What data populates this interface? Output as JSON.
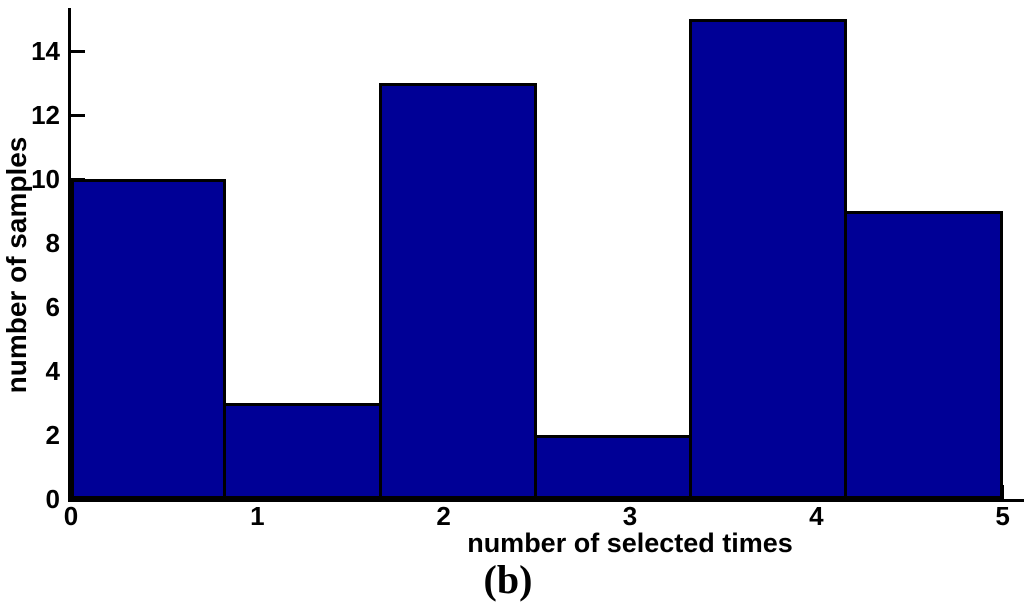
{
  "figure": {
    "caption": "(b)"
  },
  "chart_data": {
    "type": "bar",
    "subtype": "histogram",
    "title": "",
    "xlabel": "number of selected times",
    "ylabel": "number of samples",
    "bin_edges": [
      0,
      0.8333,
      1.6667,
      2.5,
      3.3333,
      4.1667,
      5
    ],
    "values": [
      10,
      3,
      13,
      2,
      15,
      9
    ],
    "x_ticks": [
      0,
      1,
      2,
      3,
      4,
      5
    ],
    "y_ticks": [
      0,
      2,
      4,
      6,
      8,
      10,
      12,
      14
    ],
    "xlim": [
      0,
      5.12
    ],
    "ylim": [
      0,
      15.35
    ],
    "grid": false,
    "legend": null,
    "bar_color": "#000096",
    "bar_edge_color": "#000000",
    "axis_color": "#000000"
  }
}
